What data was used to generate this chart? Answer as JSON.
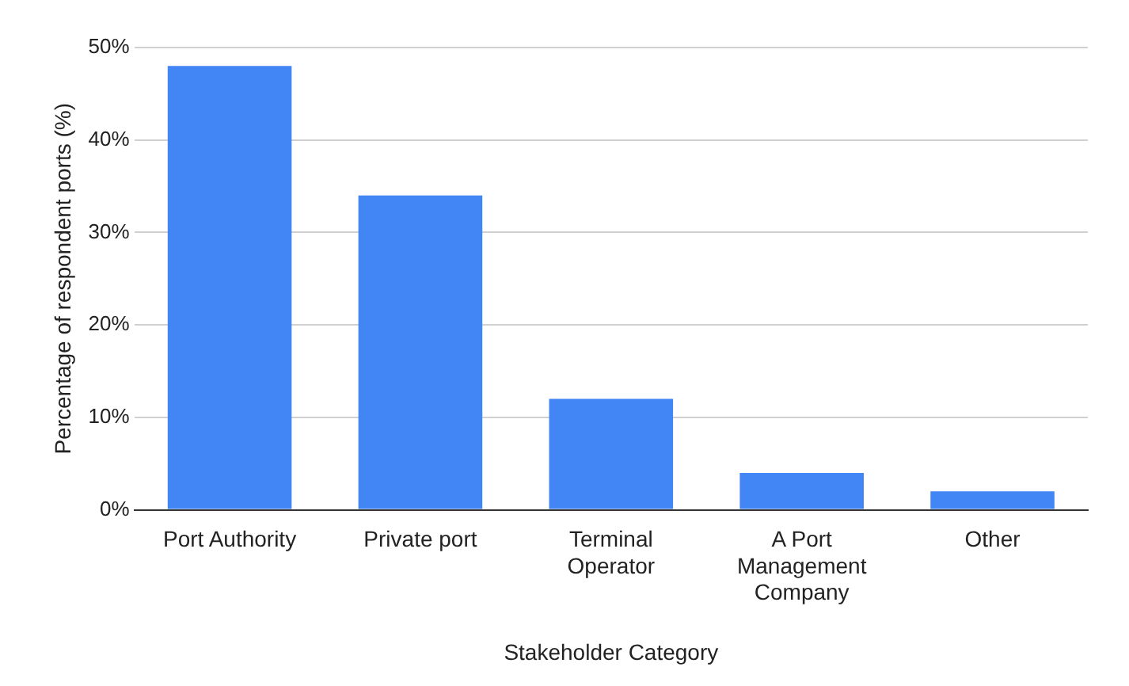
{
  "chart_data": {
    "type": "bar",
    "xlabel": "Stakeholder Category",
    "ylabel": "Percentage of respondent ports (%)",
    "categories": [
      "Port Authority",
      "Private port",
      "Terminal Operator",
      "A Port Management Company",
      "Other"
    ],
    "values": [
      48,
      34,
      12,
      4,
      2
    ],
    "color": "#4285f4",
    "ylim": [
      0,
      50
    ],
    "yticks": [
      {
        "value": 0,
        "label": "0%"
      },
      {
        "value": 10,
        "label": "10%"
      },
      {
        "value": 20,
        "label": "20%"
      },
      {
        "value": 30,
        "label": "30%"
      },
      {
        "value": 40,
        "label": "40%"
      },
      {
        "value": 50,
        "label": "50%"
      }
    ],
    "grid": "y"
  }
}
